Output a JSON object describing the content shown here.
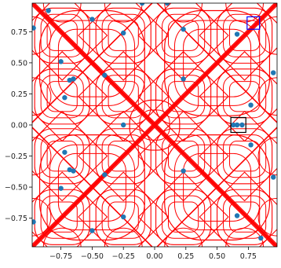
{
  "chart_data": {
    "type": "scatter",
    "xlim": [
      -0.98,
      0.98
    ],
    "ylim": [
      -0.98,
      0.98
    ],
    "grid": false,
    "xticks": [
      "−0.75",
      "−0.50",
      "−0.25",
      "0.00",
      "0.25",
      "0.50",
      "0.75"
    ],
    "xtick_values": [
      -0.75,
      -0.5,
      -0.25,
      0,
      0.25,
      0.5,
      0.75
    ],
    "yticks": [
      "0.75",
      "0.50",
      "0.25",
      "0.00",
      "−0.25",
      "−0.50",
      "−0.75"
    ],
    "ytick_values": [
      0.75,
      0.5,
      0.25,
      0,
      -0.25,
      -0.5,
      -0.75
    ],
    "points": {
      "color": "#1f77b4",
      "x": [
        -0.25,
        0.23,
        0.66,
        -0.25,
        0.23,
        0.66,
        -0.25,
        0.23,
        0.66,
        -0.68,
        -0.65,
        -0.68,
        -0.65,
        -0.75,
        -0.75,
        -0.72,
        -0.72,
        -0.5,
        -0.5,
        -0.97,
        -0.97,
        0.63,
        0.7,
        0.77,
        0.77,
        0.95,
        0.95,
        -0.85,
        0.85,
        -0.1,
        0.1,
        -0.4,
        -0.4
      ],
      "y": [
        0.74,
        0.77,
        0.73,
        0.0,
        0.37,
        0.0,
        -0.74,
        -0.37,
        -0.73,
        0.36,
        0.37,
        -0.36,
        -0.37,
        0.51,
        -0.51,
        0.22,
        -0.22,
        0.85,
        -0.85,
        0.78,
        -0.78,
        0.0,
        0.0,
        0.16,
        -0.16,
        0.42,
        -0.42,
        0.92,
        -0.91,
        0.98,
        0.98,
        0.4,
        -0.4
      ]
    },
    "curves": {
      "color": "#ff0000",
      "description_free": true
    },
    "boxes": [
      {
        "color": "#000000",
        "x": [
          0.61,
          0.73
        ],
        "y": [
          -0.06,
          0.06
        ]
      },
      {
        "color": "#0000ff",
        "x": [
          0.74,
          0.84
        ],
        "y": [
          0.77,
          0.87
        ]
      }
    ]
  }
}
